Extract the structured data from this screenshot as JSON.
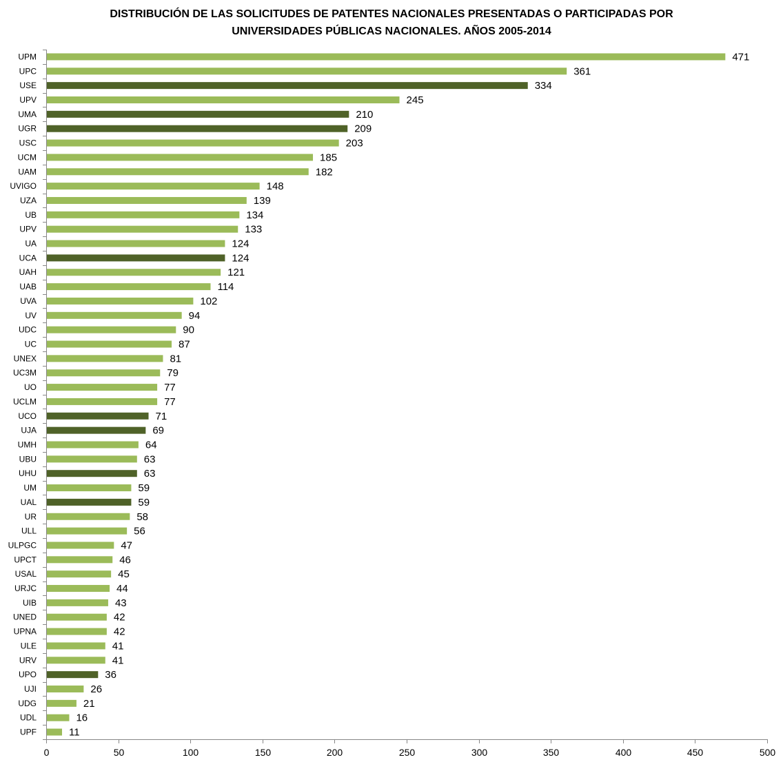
{
  "chart_data": {
    "type": "bar",
    "orientation": "horizontal",
    "title_lines": [
      "DISTRIBUCIÓN DE LAS SOLICITUDES  DE  PATENTES NACIONALES PRESENTADAS O PARTICIPADAS POR",
      "UNIVERSIDADES PÚBLICAS NACIONALES. AÑOS 2005-2014"
    ],
    "xlabel": "",
    "ylabel": "",
    "xlim": [
      0,
      500
    ],
    "xticks": [
      "0",
      "50",
      "100",
      "150",
      "200",
      "250",
      "300",
      "350",
      "400",
      "450",
      "500"
    ],
    "grid": false,
    "legend": "none",
    "colors": {
      "default": "#9BBB59",
      "highlight": "#4F6228"
    },
    "categories": [
      "UPM",
      "UPC",
      "USE",
      "UPV",
      "UMA",
      "UGR",
      "USC",
      "UCM",
      "UAM",
      "UVIGO",
      "UZA",
      "UB",
      "UPV",
      "UA",
      "UCA",
      "UAH",
      "UAB",
      "UVA",
      "UV",
      "UDC",
      "UC",
      "UNEX",
      "UC3M",
      "UO",
      "UCLM",
      "UCO",
      "UJA",
      "UMH",
      "UBU",
      "UHU",
      "UM",
      "UAL",
      "UR",
      "ULL",
      "ULPGC",
      "UPCT",
      "USAL",
      "URJC",
      "UIB",
      "UNED",
      "UPNA",
      "ULE",
      "URV",
      "UPO",
      "UJI",
      "UDG",
      "UDL",
      "UPF"
    ],
    "values": [
      471,
      361,
      334,
      245,
      210,
      209,
      203,
      185,
      182,
      148,
      139,
      134,
      133,
      124,
      124,
      121,
      114,
      102,
      94,
      90,
      87,
      81,
      79,
      77,
      77,
      71,
      69,
      64,
      63,
      63,
      59,
      59,
      58,
      56,
      47,
      46,
      45,
      44,
      43,
      42,
      42,
      41,
      41,
      36,
      26,
      21,
      16,
      11
    ],
    "highlighted": [
      false,
      false,
      true,
      false,
      true,
      true,
      false,
      false,
      false,
      false,
      false,
      false,
      false,
      false,
      true,
      false,
      false,
      false,
      false,
      false,
      false,
      false,
      false,
      false,
      false,
      true,
      true,
      false,
      false,
      true,
      false,
      true,
      false,
      false,
      false,
      false,
      false,
      false,
      false,
      false,
      false,
      false,
      false,
      true,
      false,
      false,
      false,
      false
    ]
  }
}
